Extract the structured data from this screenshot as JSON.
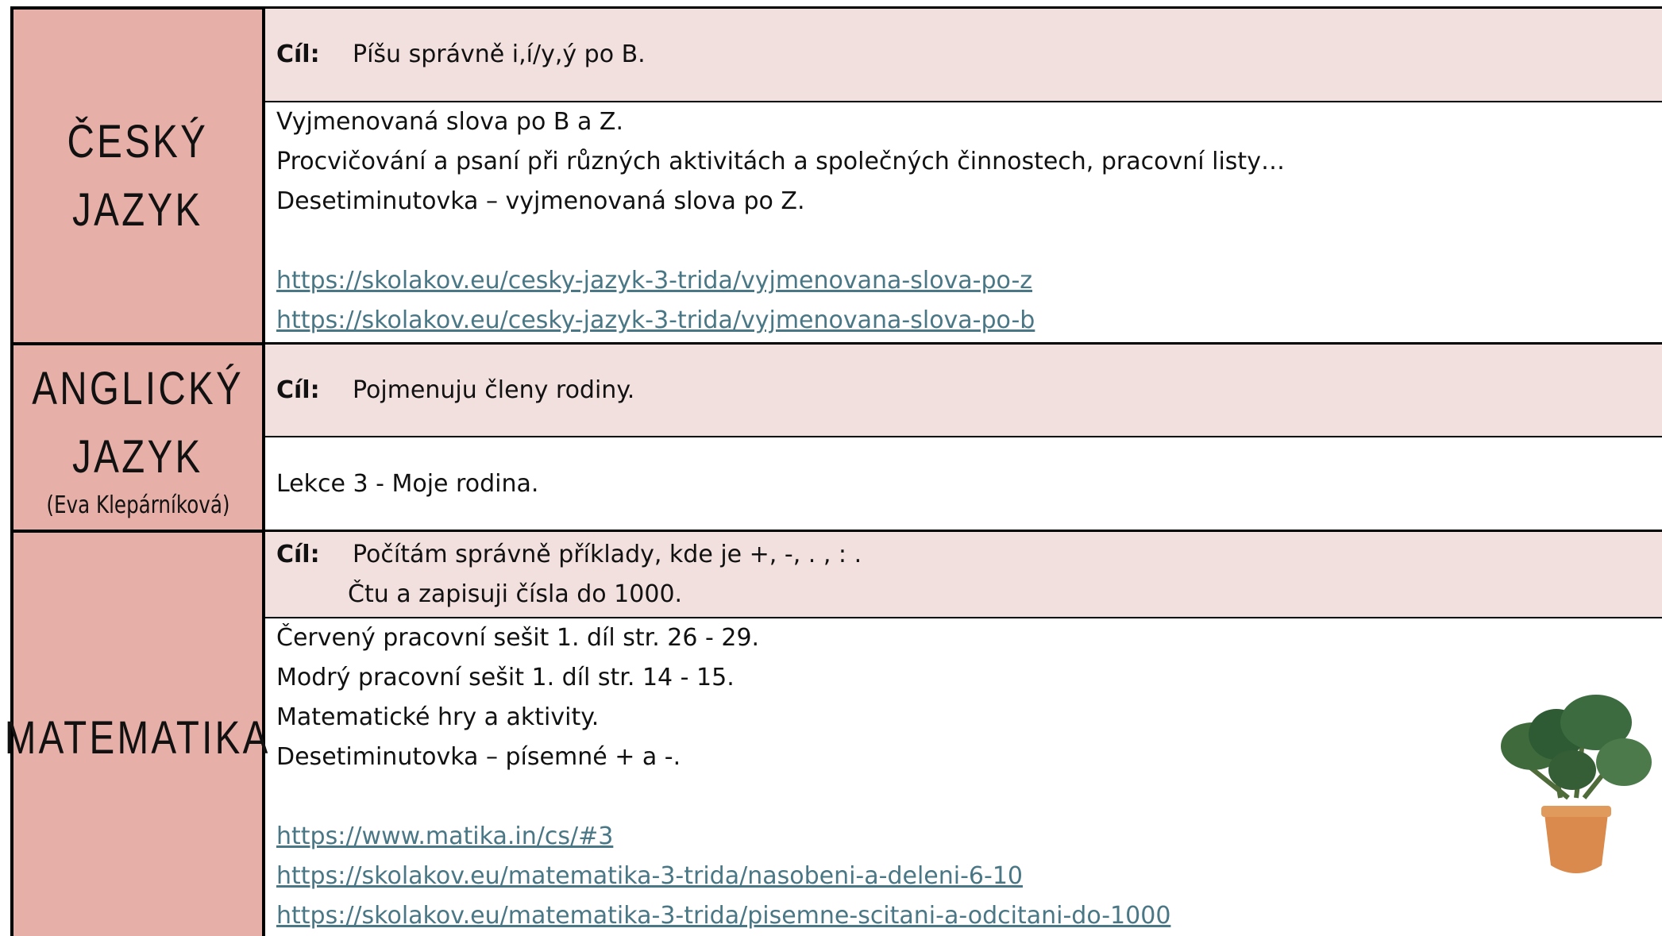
{
  "sections": [
    {
      "subject": [
        "ČESKÝ",
        "JAZYK"
      ],
      "goal_label": "Cíl:",
      "goal": [
        "Píšu správně i,í/y,ý po B."
      ],
      "content": [
        "Vyjmenovaná slova po B a Z.",
        "Procvičování a psaní při různých aktivitách a společných činnostech, pracovní listy…",
        "Desetiminutovka – vyjmenovaná slova po Z."
      ],
      "links": [
        "https://skolakov.eu/cesky-jazyk-3-trida/vyjmenovana-slova-po-z",
        "https://skolakov.eu/cesky-jazyk-3-trida/vyjmenovana-slova-po-b"
      ]
    },
    {
      "subject": [
        "ANGLICKÝ",
        "JAZYK"
      ],
      "teacher": "(Eva Klepárníková)",
      "goal_label": "Cíl:",
      "goal": [
        "Pojmenuju členy rodiny."
      ],
      "content": [
        "Lekce 3 - Moje rodina."
      ],
      "links": []
    },
    {
      "subject": [
        "MATEMATIKA"
      ],
      "goal_label": "Cíl:",
      "goal": [
        "Počítám správně příklady, kde je +, -, . , : .",
        "Čtu a zapisuji čísla do 1000."
      ],
      "content": [
        "Červený pracovní sešit 1. díl str. 26 - 29.",
        "Modrý pracovní sešit 1. díl str. 14 - 15.",
        "Matematické hry a aktivity.",
        "Desetiminutovka – písemné + a -."
      ],
      "links": [
        "https://www.matika.in/cs/#3",
        "https://skolakov.eu/matematika-3-trida/nasobeni-a-deleni-6-10",
        "https://skolakov.eu/matematika-3-trida/pisemne-scitani-a-odcitani-do-1000"
      ]
    }
  ]
}
